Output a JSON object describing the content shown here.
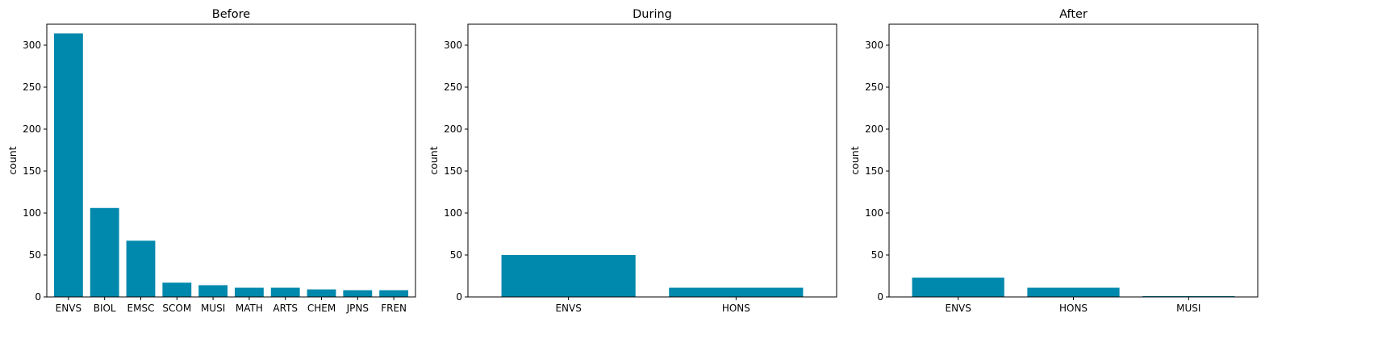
{
  "chart_data": [
    {
      "type": "bar",
      "title": "Before",
      "ylabel": "count",
      "xlabel": "",
      "ylim": [
        0,
        325
      ],
      "yticks": [
        0,
        50,
        100,
        150,
        200,
        250,
        300
      ],
      "categories": [
        "ENVS",
        "BIOL",
        "EMSC",
        "SCOM",
        "MUSI",
        "MATH",
        "ARTS",
        "CHEM",
        "JPNS",
        "FREN"
      ],
      "values": [
        314,
        106,
        67,
        17,
        14,
        11,
        11,
        9,
        8,
        8
      ],
      "grid": false
    },
    {
      "type": "bar",
      "title": "During",
      "ylabel": "count",
      "xlabel": "",
      "ylim": [
        0,
        325
      ],
      "yticks": [
        0,
        50,
        100,
        150,
        200,
        250,
        300
      ],
      "categories": [
        "ENVS",
        "HONS"
      ],
      "values": [
        50,
        11
      ],
      "grid": false
    },
    {
      "type": "bar",
      "title": "After",
      "ylabel": "count",
      "xlabel": "",
      "ylim": [
        0,
        325
      ],
      "yticks": [
        0,
        50,
        100,
        150,
        200,
        250,
        300
      ],
      "categories": [
        "ENVS",
        "HONS",
        "MUSI"
      ],
      "values": [
        23,
        11,
        1
      ],
      "grid": false
    }
  ],
  "colors": {
    "bar": "#0088ad",
    "axis": "#000000"
  }
}
